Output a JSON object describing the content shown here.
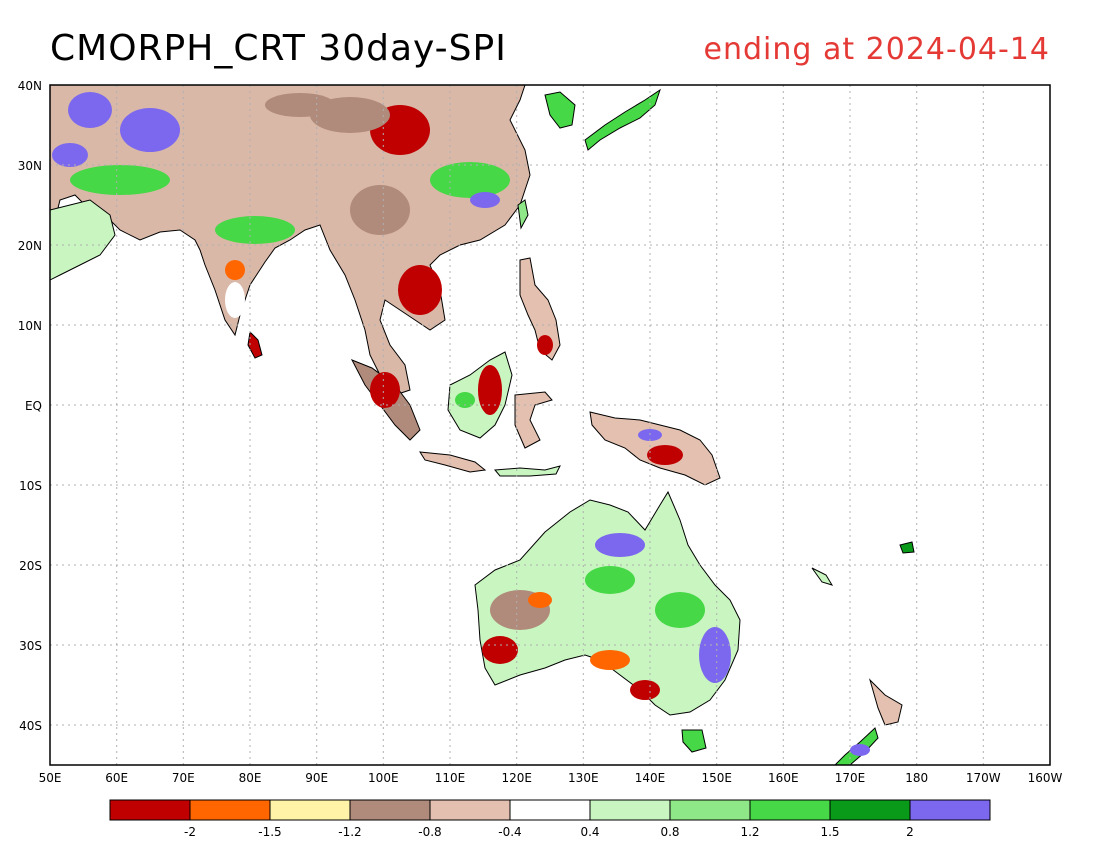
{
  "title": "CMORPH_CRT 30day-SPI",
  "subtitle": "ending at 2024-04-14",
  "map": {
    "lat_labels": [
      "40N",
      "30N",
      "20N",
      "10N",
      "EQ",
      "10S",
      "20S",
      "30S",
      "40S"
    ],
    "lon_labels": [
      "50E",
      "60E",
      "70E",
      "80E",
      "90E",
      "100E",
      "110E",
      "120E",
      "130E",
      "140E",
      "150E",
      "160E",
      "170E",
      "180",
      "170W",
      "160W"
    ],
    "lon_range": [
      "50E",
      "160W"
    ],
    "lat_range": [
      "45S",
      "40N"
    ],
    "grid": "dotted"
  },
  "legend": {
    "colors": [
      "#c00000",
      "#ff6600",
      "#fff3a8",
      "#b08a7a",
      "#e3c0b0",
      "#ffffff",
      "#c8f5c0",
      "#8fe888",
      "#46d846",
      "#0a9a1a",
      "#7b68ee"
    ],
    "labels": [
      "-2",
      "-1.5",
      "-1.2",
      "-0.8",
      "-0.4",
      "0.4",
      "0.8",
      "1.2",
      "1.5",
      "2"
    ]
  },
  "colors": {
    "title": "#000000",
    "subtitle": "#e53935",
    "coastline": "#000000",
    "gridline": "#b0b0b0"
  }
}
